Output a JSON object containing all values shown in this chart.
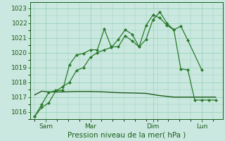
{
  "background_color": "#cbe8e0",
  "grid_color": "#8ecfb0",
  "line_color_dark": "#1a5c1a",
  "line_color_mid": "#2a7a2a",
  "xlabel": "Pression niveau de la mer( hPa )",
  "ylim": [
    1015.5,
    1023.4
  ],
  "yticks": [
    1016,
    1017,
    1018,
    1019,
    1020,
    1021,
    1022,
    1023
  ],
  "xlim": [
    -0.3,
    13.5
  ],
  "day_labels": [
    "Sam",
    "Mar",
    "Dim",
    "Lun"
  ],
  "day_positions": [
    0.8,
    4.0,
    8.5,
    12.0
  ],
  "series1_x": [
    0.0,
    0.5,
    1.0,
    1.5,
    2.0,
    2.5,
    3.0,
    3.5,
    4.0,
    4.5,
    5.0,
    5.5,
    6.0,
    6.5,
    7.0,
    7.5,
    8.0,
    8.5,
    9.0,
    9.5,
    10.0,
    10.5,
    11.0,
    12.0
  ],
  "series1_y": [
    1015.7,
    1016.3,
    1016.6,
    1017.4,
    1017.7,
    1018.0,
    1018.8,
    1019.0,
    1019.7,
    1020.0,
    1020.2,
    1020.35,
    1020.9,
    1021.55,
    1021.25,
    1020.4,
    1020.9,
    1022.25,
    1022.75,
    1022.0,
    1021.55,
    1021.8,
    1020.85,
    1018.85
  ],
  "series2_x": [
    0.0,
    0.5,
    1.0,
    1.5,
    2.0,
    2.5,
    3.0,
    3.5,
    4.0,
    4.5,
    5.0,
    5.5,
    6.0,
    6.5,
    7.0,
    7.5,
    8.0,
    8.5,
    9.0,
    9.5,
    10.0,
    10.5,
    11.0,
    11.5,
    12.0,
    12.5,
    13.0
  ],
  "series2_y": [
    1015.7,
    1016.5,
    1017.3,
    1017.45,
    1017.45,
    1019.2,
    1019.85,
    1019.95,
    1020.2,
    1020.2,
    1021.6,
    1020.4,
    1020.4,
    1021.15,
    1020.8,
    1020.4,
    1021.85,
    1022.55,
    1022.35,
    1021.85,
    1021.55,
    1018.9,
    1018.85,
    1016.8,
    1016.8,
    1016.8,
    1016.8
  ],
  "series3_x": [
    0.0,
    0.5,
    1.0,
    2.0,
    3.0,
    4.0,
    5.0,
    6.0,
    7.0,
    8.0,
    9.0,
    10.0,
    11.0,
    12.0,
    13.0
  ],
  "series3_y": [
    1017.15,
    1017.4,
    1017.35,
    1017.35,
    1017.38,
    1017.38,
    1017.35,
    1017.3,
    1017.28,
    1017.25,
    1017.1,
    1017.0,
    1017.0,
    1017.0,
    1017.0
  ],
  "marker_size": 2.5,
  "linewidth": 0.9,
  "linewidth_flat": 1.0,
  "xlabel_fontsize": 7.5,
  "tick_labelsize": 6.5
}
